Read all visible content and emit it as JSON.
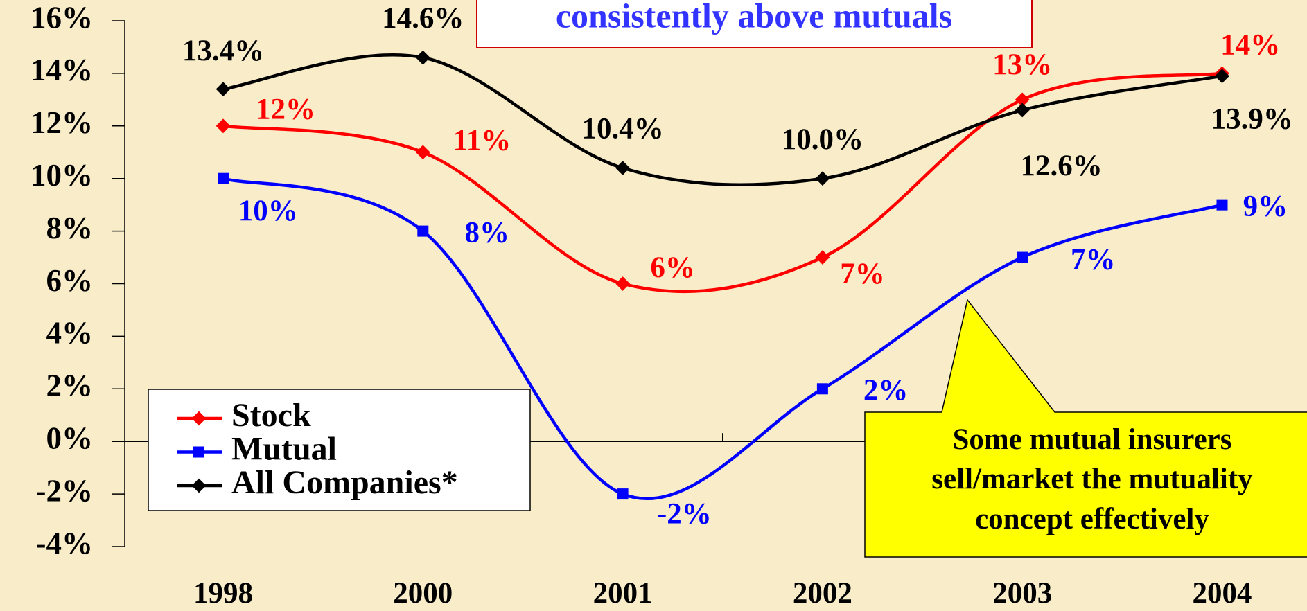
{
  "chart_data": {
    "type": "line",
    "title": "consistently above mutuals",
    "categories": [
      "1998",
      "2000",
      "2001",
      "2002",
      "2003",
      "2004"
    ],
    "series": [
      {
        "name": "Stock",
        "color": "#ff0000",
        "marker": "diamond",
        "values": [
          12,
          11,
          6,
          7,
          13,
          14
        ],
        "value_labels": [
          "12%",
          "11%",
          "6%",
          "7%",
          "13%",
          "14%"
        ]
      },
      {
        "name": "Mutual",
        "color": "#0000ff",
        "marker": "square",
        "values": [
          10,
          8,
          -2,
          2,
          7,
          9
        ],
        "value_labels": [
          "10%",
          "8%",
          "-2%",
          "2%",
          "7%",
          "9%"
        ]
      },
      {
        "name": "All Companies*",
        "color": "#000000",
        "marker": "diamond",
        "values": [
          13.4,
          14.6,
          10.4,
          10.0,
          12.6,
          13.9
        ],
        "value_labels": [
          "13.4%",
          "14.6%",
          "10.4%",
          "10.0%",
          "12.6%",
          "13.9%"
        ]
      }
    ],
    "ylim": [
      -4,
      16
    ],
    "yticks": [
      {
        "value": -4,
        "label": "-4%"
      },
      {
        "value": -2,
        "label": "-2%"
      },
      {
        "value": 0,
        "label": "0%"
      },
      {
        "value": 2,
        "label": "2%"
      },
      {
        "value": 4,
        "label": "4%"
      },
      {
        "value": 6,
        "label": "6%"
      },
      {
        "value": 8,
        "label": "8%"
      },
      {
        "value": 10,
        "label": "10%"
      },
      {
        "value": 12,
        "label": "12%"
      },
      {
        "value": 14,
        "label": "14%"
      },
      {
        "value": 16,
        "label": "16%"
      }
    ],
    "legend": "lower left",
    "annotation": [
      "Some mutual insurers",
      "sell/market the mutuality",
      "concept effectively"
    ]
  }
}
